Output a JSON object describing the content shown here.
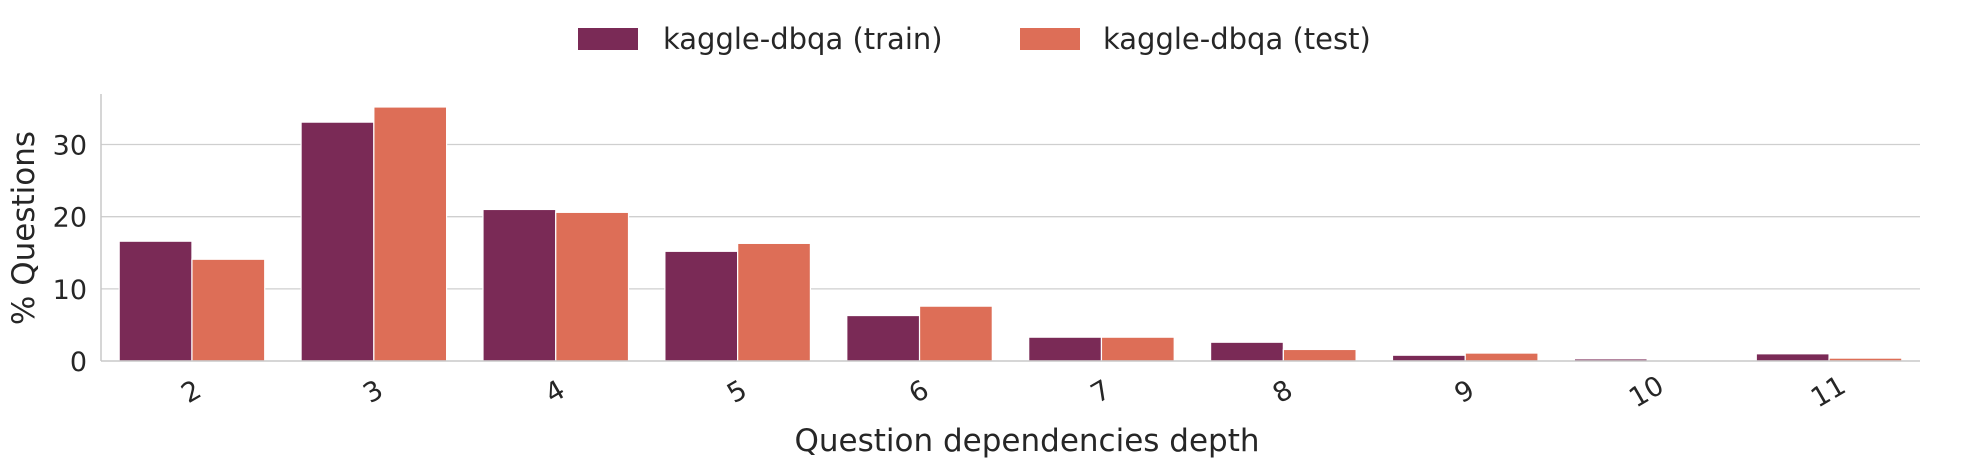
{
  "chart_data": {
    "type": "bar",
    "title": "",
    "xlabel": "Question dependencies depth",
    "ylabel": "% Questions",
    "categories": [
      "2",
      "3",
      "4",
      "5",
      "6",
      "7",
      "8",
      "9",
      "10",
      "11"
    ],
    "series": [
      {
        "name": "kaggle-dbqa (train)",
        "color": "#7a2a56",
        "values": [
          16.6,
          33.1,
          21.0,
          15.2,
          6.3,
          3.3,
          2.6,
          0.8,
          0.3,
          1.0
        ]
      },
      {
        "name": "kaggle-dbqa (test)",
        "color": "#dd6e57",
        "values": [
          14.1,
          35.2,
          20.6,
          16.3,
          7.6,
          3.3,
          1.6,
          1.1,
          0.0,
          0.4
        ]
      }
    ],
    "ylim": [
      0,
      37
    ],
    "yticks": [
      0,
      10,
      20,
      30
    ],
    "grid": "horizontal",
    "legend_position": "top-center",
    "xtick_rotation": -30
  }
}
